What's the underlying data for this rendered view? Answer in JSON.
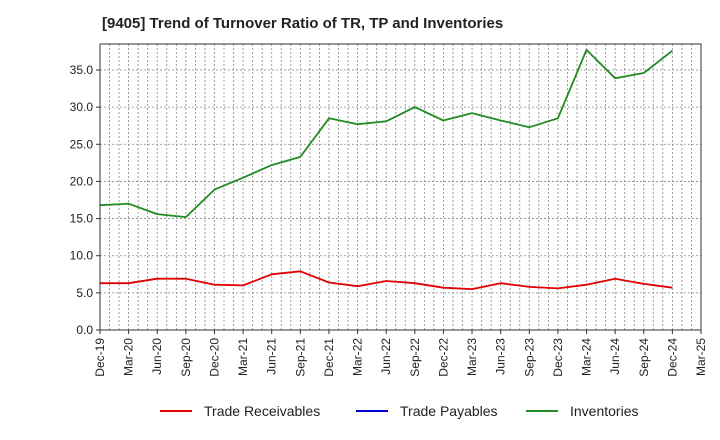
{
  "chart_data": {
    "type": "line",
    "title": "[9405]  Trend of Turnover Ratio of TR, TP and Inventories",
    "xlabel": "",
    "ylabel": "",
    "x_ticks": [
      "Dec-19",
      "Mar-20",
      "Jun-20",
      "Sep-20",
      "Dec-20",
      "Mar-21",
      "Jun-21",
      "Sep-21",
      "Dec-21",
      "Mar-22",
      "Jun-22",
      "Sep-22",
      "Dec-22",
      "Mar-23",
      "Jun-23",
      "Sep-23",
      "Dec-23",
      "Mar-24",
      "Jun-24",
      "Sep-24",
      "Dec-24",
      "Mar-25"
    ],
    "ylim": [
      0,
      38.5
    ],
    "y_ticks": [
      "0.0",
      "5.0",
      "10.0",
      "15.0",
      "20.0",
      "25.0",
      "30.0",
      "35.0"
    ],
    "grid": true,
    "legend_position": "bottom",
    "series": [
      {
        "name": "Trade Receivables",
        "color": "#e00000",
        "points": [
          [
            "Dec-19",
            6.3
          ],
          [
            "Mar-20",
            6.3
          ],
          [
            "Jun-20",
            6.9
          ],
          [
            "Sep-20",
            6.9
          ],
          [
            "Dec-20",
            6.1
          ],
          [
            "Mar-21",
            6.0
          ],
          [
            "Jun-21",
            7.5
          ],
          [
            "Sep-21",
            7.9
          ],
          [
            "Dec-21",
            6.4
          ],
          [
            "Mar-22",
            5.9
          ],
          [
            "Jun-22",
            6.6
          ],
          [
            "Sep-22",
            6.3
          ],
          [
            "Dec-22",
            5.7
          ],
          [
            "Mar-23",
            5.5
          ],
          [
            "Jun-23",
            6.3
          ],
          [
            "Sep-23",
            5.8
          ],
          [
            "Dec-23",
            5.6
          ],
          [
            "Mar-24",
            6.1
          ],
          [
            "Jun-24",
            6.9
          ],
          [
            "Sep-24",
            6.2
          ],
          [
            "Dec-24",
            5.7
          ]
        ]
      },
      {
        "name": "Trade Payables",
        "color": "#0000cc",
        "points": []
      },
      {
        "name": "Inventories",
        "color": "#228b22",
        "points": [
          [
            "Dec-19",
            16.8
          ],
          [
            "Mar-20",
            17.0
          ],
          [
            "Jun-20",
            15.6
          ],
          [
            "Sep-20",
            15.2
          ],
          [
            "Dec-20",
            18.9
          ],
          [
            "Mar-21",
            20.5
          ],
          [
            "Jun-21",
            22.2
          ],
          [
            "Sep-21",
            23.3
          ],
          [
            "Dec-21",
            28.5
          ],
          [
            "Mar-22",
            27.7
          ],
          [
            "Jun-22",
            28.1
          ],
          [
            "Sep-22",
            30.0
          ],
          [
            "Dec-22",
            28.2
          ],
          [
            "Mar-23",
            29.2
          ],
          [
            "Jun-23",
            28.2
          ],
          [
            "Sep-23",
            27.3
          ],
          [
            "Dec-23",
            28.5
          ],
          [
            "Mar-24",
            37.7
          ],
          [
            "Jun-24",
            33.9
          ],
          [
            "Sep-24",
            34.6
          ],
          [
            "Dec-24",
            37.6
          ]
        ]
      }
    ]
  }
}
